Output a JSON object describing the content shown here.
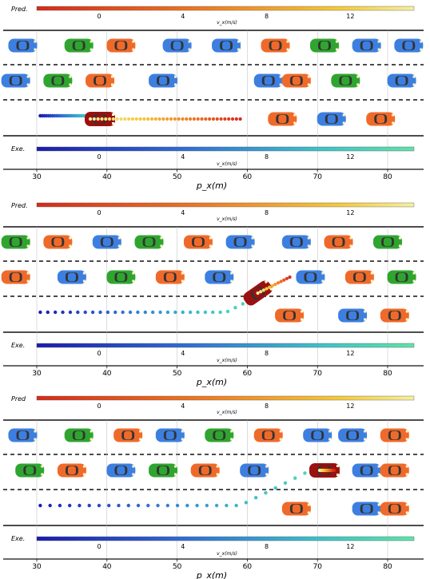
{
  "colors": {
    "pred_bar": [
      "#d62a1a",
      "#ee7c22",
      "#f4c93a",
      "#f5f0a0"
    ],
    "exe_bar": [
      "#1b1bb0",
      "#2f6fd6",
      "#3cc2c8",
      "#5fe3a8"
    ],
    "car_blue": "#3d7fe0",
    "car_green": "#2fa52f",
    "car_orange": "#ef6a2a",
    "ego_car": "#9b1010"
  },
  "panels": [
    {
      "pred_label": "Pred.",
      "exe_label": "Exe.",
      "vx_ticks": [
        "0",
        "4",
        "8",
        "12"
      ],
      "vx_label": "v_x(m/s)",
      "x_ticks": [
        "30",
        "40",
        "50",
        "60",
        "70",
        "80"
      ],
      "x_label": "p_x(m)",
      "scenario": "ego vehicle travelling in bottom lane; predicted trajectory extends ahead in same lane"
    },
    {
      "pred_label": "Pred.",
      "exe_label": "Exe.",
      "vx_ticks": [
        "0",
        "4",
        "8",
        "12"
      ],
      "vx_label": "v_x(m/s)",
      "x_ticks": [
        "30",
        "40",
        "50",
        "60",
        "70",
        "80"
      ],
      "x_label": "p_x(m)",
      "scenario": "ego vehicle begins lane change toward middle lane"
    },
    {
      "pred_label": "Pred",
      "exe_label": "Exe.",
      "vx_ticks": [
        "0",
        "4",
        "8",
        "12"
      ],
      "vx_label": "v_x(m/s)",
      "x_ticks": [
        "30",
        "40",
        "50",
        "60",
        "70",
        "80"
      ],
      "x_label": "p_x(m)",
      "scenario": "ego vehicle completed lane change into middle lane"
    }
  ]
}
